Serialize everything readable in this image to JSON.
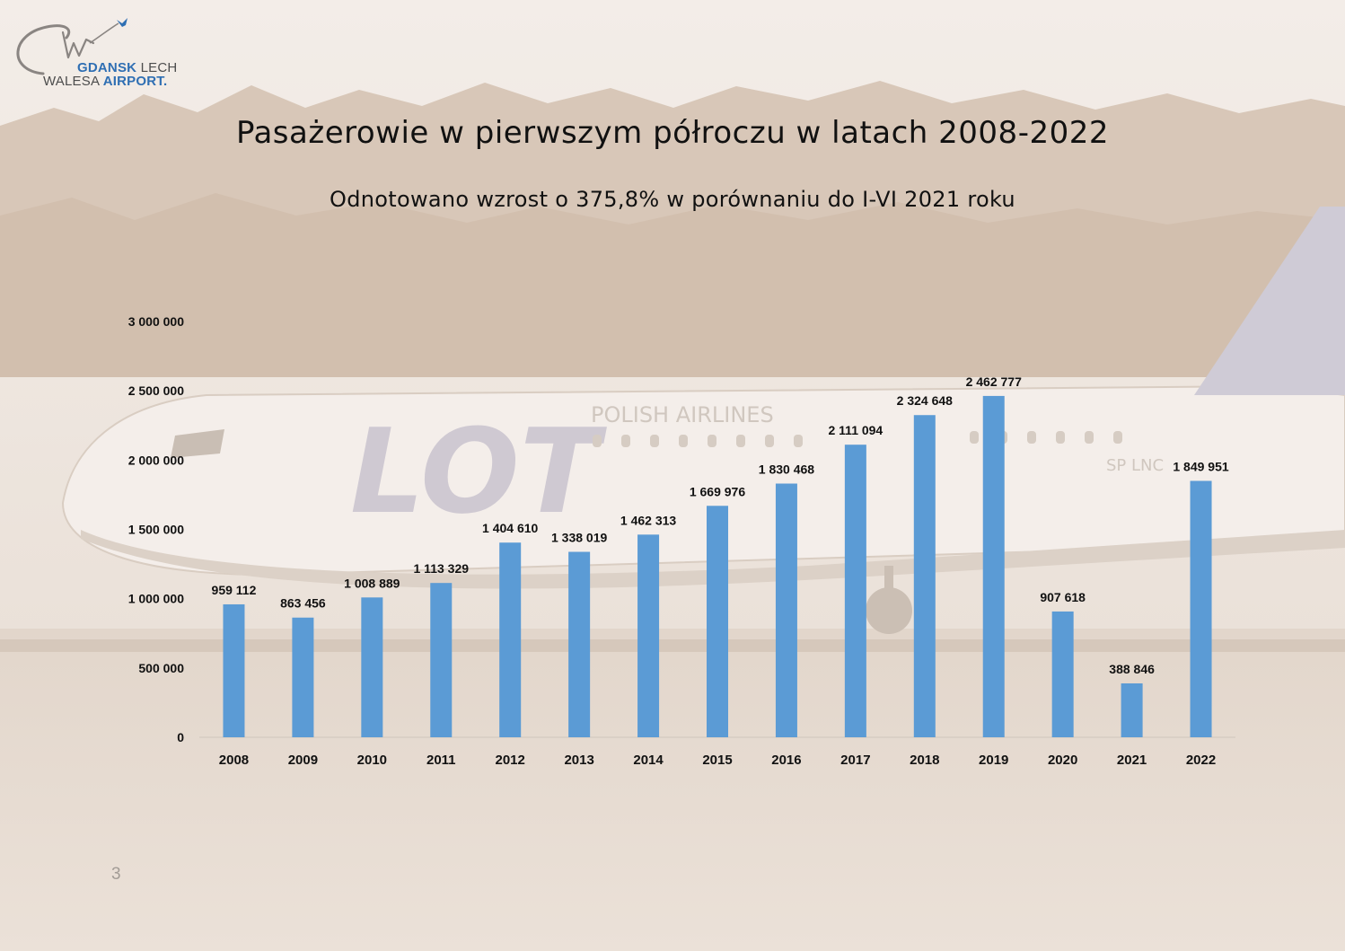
{
  "header": {
    "logo_line1_bold": "GDANSK",
    "logo_line1_light": "LECH",
    "logo_line2_light": "WALESA",
    "logo_line2_bold": "AIRPORT.",
    "title": "Pasażerowie w pierwszym półroczu w latach 2008-2022",
    "subtitle": "Odnotowano wzrost o 375,8% w porównaniu do I-VI 2021 roku"
  },
  "background_photo": {
    "airline_wordmark": "LOT",
    "airline_name": "POLISH AIRLINES",
    "registration": "SP LNC"
  },
  "footer": {
    "page_number": "3"
  },
  "colors": {
    "bar": "#5b9bd5",
    "background": "#ece3da",
    "text": "#111111"
  },
  "chart_data": {
    "type": "bar",
    "categories": [
      "2008",
      "2009",
      "2010",
      "2011",
      "2012",
      "2013",
      "2014",
      "2015",
      "2016",
      "2017",
      "2018",
      "2019",
      "2020",
      "2021",
      "2022"
    ],
    "values": [
      959112,
      863456,
      1008889,
      1113329,
      1404610,
      1338019,
      1462313,
      1669976,
      1830468,
      2111094,
      2324648,
      2462777,
      907618,
      388846,
      1849951
    ],
    "data_labels": [
      "959 112",
      "863 456",
      "1 008 889",
      "1 113 329",
      "1 404 610",
      "1 338 019",
      "1 462 313",
      "1 669 976",
      "1 830 468",
      "2 111 094",
      "2 324 648",
      "2 462 777",
      "907 618",
      "388 846",
      "1 849 951"
    ],
    "y_ticks": [
      0,
      500000,
      1000000,
      1500000,
      2000000,
      2500000,
      3000000
    ],
    "y_tick_labels": [
      "0",
      "500 000",
      "1 000 000",
      "1 500 000",
      "2 000 000",
      "2 500 000",
      "3 000 000"
    ],
    "ylim": [
      0,
      3000000
    ],
    "title": "Pasażerowie w pierwszym półroczu w latach 2008-2022",
    "subtitle": "Odnotowano wzrost o 375,8% w porównaniu do I-VI 2021 roku",
    "xlabel": "",
    "ylabel": "",
    "grid": false,
    "legend": "none"
  }
}
